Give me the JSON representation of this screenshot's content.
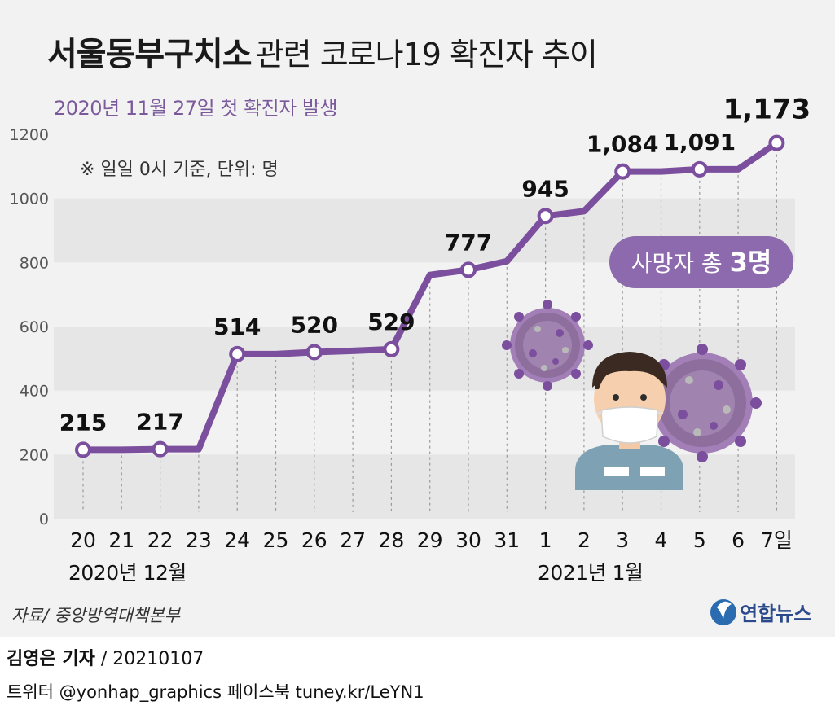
{
  "title": {
    "bold": "서울동부구치소",
    "rest": "관련 코로나19 확진자 추이"
  },
  "subtitle": "2020년 11월 27일 첫 확진자 발생",
  "note": "※ 일일 0시 기준, 단위: 명",
  "badge": {
    "prefix": "사망자 총 ",
    "count": "3명"
  },
  "month_labels": {
    "dec": "2020년 12월",
    "jan": "2021년 1월"
  },
  "source": "자료/ 중앙방역대책본부",
  "logo": "연합뉴스",
  "reporter": {
    "name": "김영은 기자",
    "date": "/ 20210107"
  },
  "social": "트위터 @yonhap_graphics  페이스북 tuney.kr/LeYN1",
  "colors": {
    "line": "#7b4f9d",
    "subtitle": "#7b5a9c",
    "badge": "#8d6aad",
    "band": "#e6e6e6",
    "background": "#f2f2f2"
  },
  "chart_data": {
    "type": "line",
    "title": "서울동부구치소 관련 코로나19 확진자 추이",
    "subtitle": "2020년 11월 27일 첫 확진자 발생",
    "xlabel": "",
    "ylabel": "",
    "categories": [
      "20",
      "21",
      "22",
      "23",
      "24",
      "25",
      "26",
      "27",
      "28",
      "29",
      "30",
      "31",
      "1",
      "2",
      "3",
      "4",
      "5",
      "6",
      "7일"
    ],
    "series": [
      {
        "values": [
          215,
          215,
          217,
          217,
          514,
          514,
          520,
          524,
          529,
          761,
          777,
          804,
          945,
          960,
          1084,
          1084,
          1091,
          1091,
          1173
        ]
      }
    ],
    "data_labels": [
      {
        "index": 0,
        "text": "215"
      },
      {
        "index": 2,
        "text": "217"
      },
      {
        "index": 4,
        "text": "514"
      },
      {
        "index": 6,
        "text": "520"
      },
      {
        "index": 8,
        "text": "529"
      },
      {
        "index": 10,
        "text": "777"
      },
      {
        "index": 12,
        "text": "945"
      },
      {
        "index": 14,
        "text": "1,084"
      },
      {
        "index": 16,
        "text": "1,091"
      },
      {
        "index": 18,
        "text": "1,173"
      }
    ],
    "yticks": [
      0,
      200,
      400,
      600,
      800,
      1000,
      1200
    ],
    "ylim": [
      0,
      1200
    ],
    "grid": "alternating horizontal bands"
  }
}
